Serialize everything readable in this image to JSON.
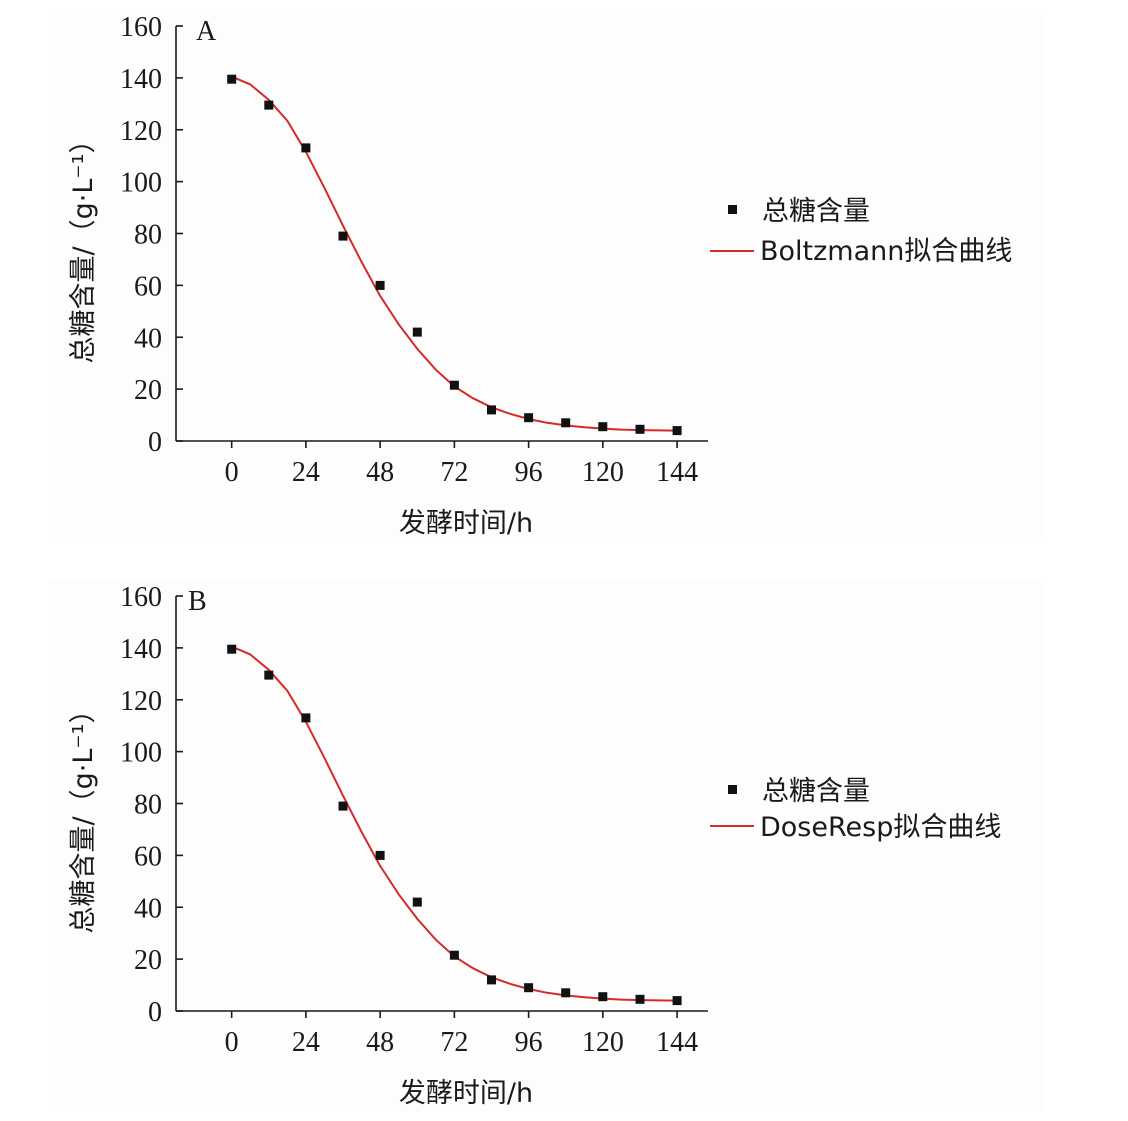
{
  "chart_data": [
    {
      "type": "scatter",
      "panel_label": "A",
      "xlabel": "发酵时间/h",
      "ylabel": "总糖含量/（g·L⁻¹）",
      "xlim": [
        -18,
        154
      ],
      "ylim": [
        0,
        160
      ],
      "xticks": [
        0,
        24,
        48,
        72,
        96,
        120,
        144
      ],
      "yticks": [
        0,
        20,
        40,
        60,
        80,
        100,
        120,
        140,
        160
      ],
      "legend_position": "right",
      "series": [
        {
          "name": "总糖含量",
          "kind": "points",
          "color": "#111111",
          "x": [
            0,
            12,
            24,
            36,
            48,
            60,
            72,
            84,
            96,
            108,
            120,
            132,
            144
          ],
          "y": [
            139.5,
            129.5,
            113,
            79,
            60,
            42,
            21.5,
            12,
            9,
            7,
            5.5,
            4.5,
            4
          ]
        },
        {
          "name": "Boltzmann拟合曲线",
          "kind": "line",
          "color": "#d62a2a",
          "x": [
            0,
            6,
            12,
            18,
            24,
            30,
            36,
            42,
            48,
            54,
            60,
            66,
            72,
            78,
            84,
            90,
            96,
            102,
            108,
            114,
            120,
            126,
            132,
            138,
            144
          ],
          "y": [
            140.5,
            137.5,
            131.5,
            123.5,
            111.5,
            97.5,
            83,
            69,
            56,
            45,
            35.5,
            27.5,
            21,
            16.5,
            13,
            10.5,
            8.5,
            7,
            6,
            5.3,
            4.8,
            4.4,
            4.2,
            4.1,
            4.0
          ]
        }
      ]
    },
    {
      "type": "scatter",
      "panel_label": "B",
      "xlabel": "发酵时间/h",
      "ylabel": "总糖含量/（g·L⁻¹）",
      "xlim": [
        -18,
        154
      ],
      "ylim": [
        0,
        160
      ],
      "xticks": [
        0,
        24,
        48,
        72,
        96,
        120,
        144
      ],
      "yticks": [
        0,
        20,
        40,
        60,
        80,
        100,
        120,
        140,
        160
      ],
      "legend_position": "right",
      "series": [
        {
          "name": "总糖含量",
          "kind": "points",
          "color": "#111111",
          "x": [
            0,
            12,
            24,
            36,
            48,
            60,
            72,
            84,
            96,
            108,
            120,
            132,
            144
          ],
          "y": [
            139.5,
            129.5,
            113,
            79,
            60,
            42,
            21.5,
            12,
            9,
            7,
            5.5,
            4.5,
            4
          ]
        },
        {
          "name": "DoseResp拟合曲线",
          "kind": "line",
          "color": "#d62a2a",
          "x": [
            0,
            6,
            12,
            18,
            24,
            30,
            36,
            42,
            48,
            54,
            60,
            66,
            72,
            78,
            84,
            90,
            96,
            102,
            108,
            114,
            120,
            126,
            132,
            138,
            144
          ],
          "y": [
            140.5,
            137.5,
            131.5,
            123.5,
            111.5,
            97.5,
            83,
            69,
            56,
            45,
            35.5,
            27.5,
            21,
            16.5,
            13,
            10.5,
            8.5,
            7,
            6,
            5.3,
            4.8,
            4.4,
            4.2,
            4.1,
            4.0
          ]
        }
      ]
    }
  ]
}
